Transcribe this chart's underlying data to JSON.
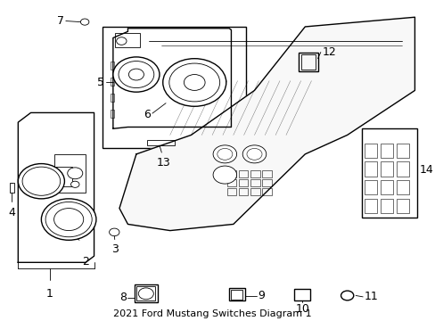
{
  "title": "2021 Ford Mustang Switches Diagram 1",
  "bg_color": "#ffffff",
  "line_color": "#000000",
  "font_size": 9,
  "title_font_size": 8
}
